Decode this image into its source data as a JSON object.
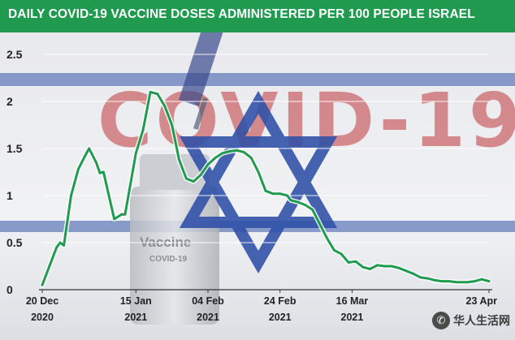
{
  "header": {
    "title": "DAILY COVID-19 VACCINE DOSES ADMINISTERED PER 100 PEOPLE ISRAEL"
  },
  "background": {
    "big_text": "COVID-19",
    "vial_label": "Vaccine",
    "vial_sublabel": "COVID-19"
  },
  "watermark": {
    "text": "华人生活网",
    "icon": "wechat-icon"
  },
  "colors": {
    "banner": "#1f9a4f",
    "line": "#1f9a4f",
    "flag_blue": "#2e4fa8"
  },
  "chart_data": {
    "type": "line",
    "title": "DAILY COVID-19 VACCINE DOSES ADMINISTERED PER 100 PEOPLE ISRAEL",
    "xlabel": "",
    "ylabel": "",
    "ylim": [
      0,
      2.5
    ],
    "yticks": [
      {
        "value": 0,
        "label": "0"
      },
      {
        "value": 0.5,
        "label": "0.5"
      },
      {
        "value": 1,
        "label": "1"
      },
      {
        "value": 1.5,
        "label": "1.5"
      },
      {
        "value": 2,
        "label": "2"
      },
      {
        "value": 2.5,
        "label": "2.5"
      }
    ],
    "xticks": [
      {
        "date": "2020-12-20",
        "label1": "20 Dec",
        "label2": "2020"
      },
      {
        "date": "2021-01-15",
        "label1": "15 Jan",
        "label2": "2021"
      },
      {
        "date": "2021-02-04",
        "label1": "04 Feb",
        "label2": "2021"
      },
      {
        "date": "2021-02-24",
        "label1": "24 Feb",
        "label2": "2021"
      },
      {
        "date": "2021-03-16",
        "label1": "16 Mar",
        "label2": "2021"
      },
      {
        "date": "2021-04-23",
        "label1": "23 Apr",
        "label2": ""
      }
    ],
    "grid": true,
    "series": [
      {
        "values": [
          [
            "2020-12-20",
            0.05
          ],
          [
            "2020-12-24",
            0.45
          ],
          [
            "2020-12-25",
            0.5
          ],
          [
            "2020-12-26",
            0.47
          ],
          [
            "2020-12-28",
            1.0
          ],
          [
            "2020-12-30",
            1.28
          ],
          [
            "2021-01-01",
            1.43
          ],
          [
            "2021-01-02",
            1.5
          ],
          [
            "2021-01-04",
            1.35
          ],
          [
            "2021-01-05",
            1.24
          ],
          [
            "2021-01-06",
            1.25
          ],
          [
            "2021-01-09",
            0.75
          ],
          [
            "2021-01-11",
            0.8
          ],
          [
            "2021-01-12",
            0.8
          ],
          [
            "2021-01-15",
            1.45
          ],
          [
            "2021-01-17",
            1.7
          ],
          [
            "2021-01-19",
            2.1
          ],
          [
            "2021-01-21",
            2.08
          ],
          [
            "2021-01-23",
            1.95
          ],
          [
            "2021-01-25",
            1.75
          ],
          [
            "2021-01-27",
            1.38
          ],
          [
            "2021-01-29",
            1.18
          ],
          [
            "2021-01-31",
            1.15
          ],
          [
            "2021-02-02",
            1.22
          ],
          [
            "2021-02-04",
            1.33
          ],
          [
            "2021-02-06",
            1.4
          ],
          [
            "2021-02-08",
            1.45
          ],
          [
            "2021-02-10",
            1.47
          ],
          [
            "2021-02-12",
            1.48
          ],
          [
            "2021-02-14",
            1.46
          ],
          [
            "2021-02-16",
            1.4
          ],
          [
            "2021-02-18",
            1.25
          ],
          [
            "2021-02-20",
            1.05
          ],
          [
            "2021-02-22",
            1.02
          ],
          [
            "2021-02-24",
            1.02
          ],
          [
            "2021-02-26",
            1.0
          ],
          [
            "2021-02-27",
            0.95
          ],
          [
            "2021-03-01",
            0.93
          ],
          [
            "2021-03-03",
            0.9
          ],
          [
            "2021-03-05",
            0.85
          ],
          [
            "2021-03-07",
            0.7
          ],
          [
            "2021-03-09",
            0.55
          ],
          [
            "2021-03-11",
            0.42
          ],
          [
            "2021-03-13",
            0.38
          ],
          [
            "2021-03-15",
            0.29
          ],
          [
            "2021-03-17",
            0.3
          ],
          [
            "2021-03-19",
            0.24
          ],
          [
            "2021-03-21",
            0.22
          ],
          [
            "2021-03-23",
            0.26
          ],
          [
            "2021-03-25",
            0.25
          ],
          [
            "2021-03-27",
            0.25
          ],
          [
            "2021-03-29",
            0.23
          ],
          [
            "2021-03-31",
            0.2
          ],
          [
            "2021-04-02",
            0.17
          ],
          [
            "2021-04-04",
            0.13
          ],
          [
            "2021-04-06",
            0.12
          ],
          [
            "2021-04-08",
            0.1
          ],
          [
            "2021-04-10",
            0.09
          ],
          [
            "2021-04-12",
            0.09
          ],
          [
            "2021-04-14",
            0.08
          ],
          [
            "2021-04-17",
            0.08
          ],
          [
            "2021-04-19",
            0.09
          ],
          [
            "2021-04-21",
            0.11
          ],
          [
            "2021-04-23",
            0.09
          ]
        ]
      }
    ]
  }
}
